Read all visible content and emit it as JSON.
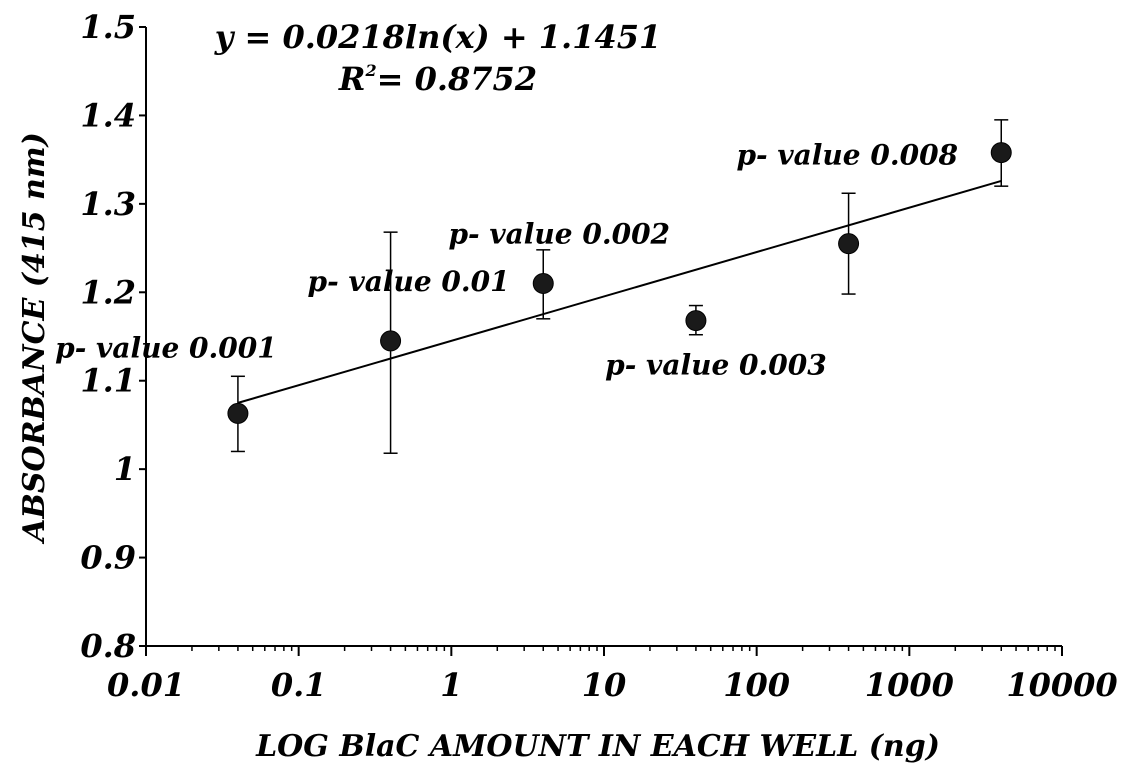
{
  "chart_data": {
    "type": "scatter",
    "title": "",
    "xlabel": "LOG BlaC AMOUNT IN EACH WELL (ng)",
    "ylabel": "ABSORBANCE (415 nm)",
    "x_scale": "log",
    "xlim": [
      0.01,
      10000
    ],
    "ylim": [
      0.8,
      1.5
    ],
    "x_ticks": [
      0.01,
      0.1,
      1,
      10,
      100,
      1000,
      10000
    ],
    "x_tick_labels": [
      "0.01",
      "0.1",
      "1",
      "10",
      "100",
      "1000",
      "10000"
    ],
    "y_ticks": [
      0.8,
      0.9,
      1.0,
      1.1,
      1.2,
      1.3,
      1.4,
      1.5
    ],
    "y_tick_labels": [
      "0.8",
      "0.9",
      "1",
      "1.1",
      "1.2",
      "1.3",
      "1.4",
      "1.5"
    ],
    "grid": false,
    "series": [
      {
        "points": [
          {
            "x": 0.04,
            "y": 1.063,
            "err_low": 1.02,
            "err_high": 1.105
          },
          {
            "x": 0.4,
            "y": 1.145,
            "err_low": 1.018,
            "err_high": 1.268
          },
          {
            "x": 4,
            "y": 1.21,
            "err_low": 1.17,
            "err_high": 1.248
          },
          {
            "x": 40,
            "y": 1.168,
            "err_low": 1.152,
            "err_high": 1.185
          },
          {
            "x": 400,
            "y": 1.255,
            "err_low": 1.198,
            "err_high": 1.312
          },
          {
            "x": 4000,
            "y": 1.358,
            "err_low": 1.32,
            "err_high": 1.395
          }
        ],
        "color": "#1a1a1a"
      }
    ],
    "trendline": {
      "type": "logarithmic",
      "slope": 0.0218,
      "intercept": 1.1451,
      "x_from": 0.04,
      "x_to": 4000,
      "equation": "y = 0.0218ln(x) + 1.1451",
      "r_squared_prefix": "R",
      "r_squared_sup": "2",
      "r_squared_value": "= 0.8752"
    },
    "annotations": [
      {
        "text": "p- value 0.001",
        "near_point": 0
      },
      {
        "text": "p- value 0.01",
        "near_point": 1
      },
      {
        "text": "p- value 0.002",
        "near_point": 2
      },
      {
        "text": "p- value 0.003",
        "near_point": 3
      },
      {
        "text": "p- value 0.008",
        "near_point": 5
      }
    ]
  }
}
